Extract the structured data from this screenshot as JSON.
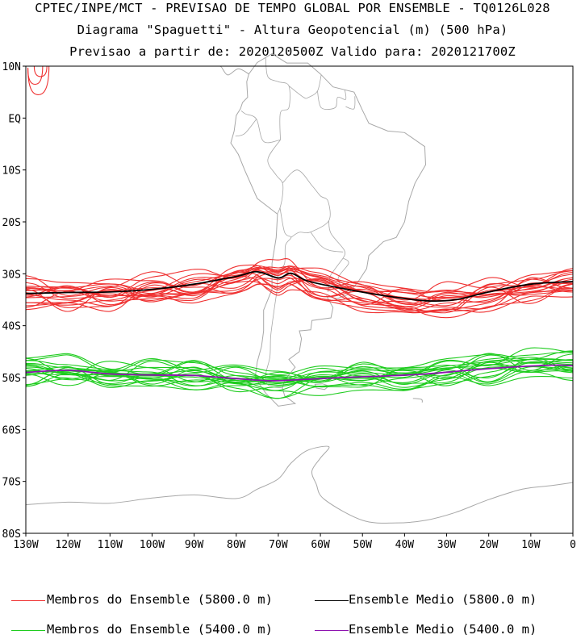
{
  "titles": {
    "line1": "CPTEC/INPE/MCT - PREVISAO DE TEMPO GLOBAL POR ENSEMBLE - TQ0126L028",
    "line2": "Diagrama \"Spaguetti\" - Altura Geopotencial (m) (500 hPa)",
    "line3": "Previsao a partir de: 2020120500Z  Valido para: 2020121700Z"
  },
  "axes": {
    "lat_labels": [
      "10N",
      "EQ",
      "10S",
      "20S",
      "30S",
      "40S",
      "50S",
      "60S",
      "70S",
      "80S"
    ],
    "lat_values": [
      10,
      0,
      -10,
      -20,
      -30,
      -40,
      -50,
      -60,
      -70,
      -80
    ],
    "lon_labels": [
      "130W",
      "120W",
      "110W",
      "100W",
      "90W",
      "80W",
      "70W",
      "60W",
      "50W",
      "40W",
      "30W",
      "20W",
      "10W",
      "0"
    ],
    "lon_values": [
      -130,
      -120,
      -110,
      -100,
      -90,
      -80,
      -70,
      -60,
      -50,
      -40,
      -30,
      -20,
      -10,
      0
    ]
  },
  "colors": {
    "member_5800": "#ef3030",
    "member_5400": "#1ecc1e",
    "mean_5800": "#000000",
    "mean_5400": "#8e12b0",
    "coast": "#a8a8a8"
  },
  "legend": {
    "item1": "Membros do Ensemble (5800.0 m)",
    "item2": "Ensemble Medio (5800.0 m)",
    "item3": "Membros do Ensemble (5400.0 m)",
    "item4": "Ensemble Medio (5400.0 m)"
  },
  "map_data": {
    "lon_range": [
      -130,
      0
    ],
    "lat_range": [
      -80,
      10
    ],
    "mean_5800": [
      [
        -130,
        -33.8
      ],
      [
        -120,
        -33.6
      ],
      [
        -110,
        -33.5
      ],
      [
        -100,
        -33
      ],
      [
        -90,
        -32
      ],
      [
        -80,
        -30.5
      ],
      [
        -75,
        -29.6
      ],
      [
        -70,
        -30.8
      ],
      [
        -67,
        -29.9
      ],
      [
        -63,
        -31.4
      ],
      [
        -55,
        -32.8
      ],
      [
        -45,
        -34.2
      ],
      [
        -35,
        -35.2
      ],
      [
        -28,
        -35
      ],
      [
        -20,
        -33.5
      ],
      [
        -10,
        -32
      ],
      [
        0,
        -31.5
      ]
    ],
    "mean_5400": [
      [
        -130,
        -49
      ],
      [
        -120,
        -48.6
      ],
      [
        -110,
        -49.3
      ],
      [
        -100,
        -49.5
      ],
      [
        -90,
        -49.6
      ],
      [
        -80,
        -50.2
      ],
      [
        -72,
        -50.6
      ],
      [
        -65,
        -50.4
      ],
      [
        -55,
        -50
      ],
      [
        -45,
        -49.7
      ],
      [
        -35,
        -49.3
      ],
      [
        -25,
        -48.6
      ],
      [
        -15,
        -48
      ],
      [
        -5,
        -47.6
      ],
      [
        0,
        -47.7
      ]
    ]
  }
}
